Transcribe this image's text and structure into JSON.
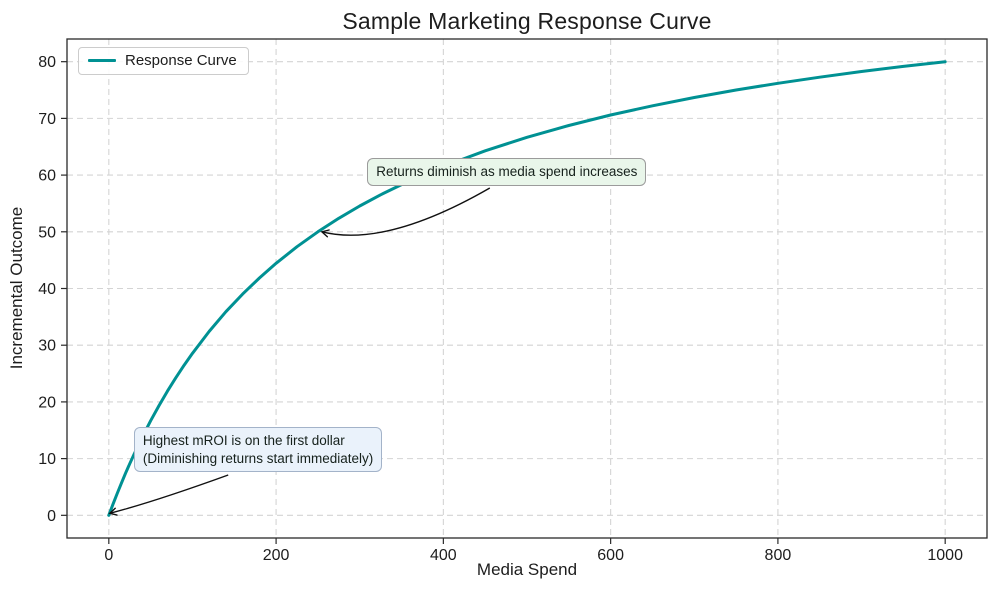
{
  "chart_data": {
    "type": "line",
    "title": "Sample Marketing Response Curve",
    "xlabel": "Media Spend",
    "ylabel": "Incremental Outcome",
    "xlim": [
      -50,
      1050
    ],
    "ylim": [
      -4,
      84
    ],
    "xticks": [
      0,
      200,
      400,
      600,
      800,
      1000
    ],
    "yticks": [
      0,
      10,
      20,
      30,
      40,
      50,
      60,
      70,
      80
    ],
    "grid": true,
    "legend": {
      "position": "upper left",
      "entries": [
        "Response Curve"
      ]
    },
    "series": [
      {
        "name": "Response Curve",
        "color": "#009193",
        "x": [
          0,
          5,
          10,
          15,
          20,
          25,
          30,
          40,
          50,
          60,
          70,
          80,
          90,
          100,
          120,
          140,
          160,
          180,
          200,
          225,
          250,
          275,
          300,
          325,
          350,
          375,
          400,
          450,
          500,
          550,
          600,
          650,
          700,
          750,
          800,
          850,
          900,
          950,
          1000
        ],
        "y": [
          0,
          1.96,
          3.85,
          5.66,
          7.41,
          9.09,
          10.71,
          13.79,
          16.67,
          19.35,
          21.88,
          24.24,
          26.47,
          28.57,
          32.43,
          35.9,
          39.02,
          41.86,
          44.44,
          47.37,
          50,
          52.38,
          54.55,
          56.52,
          58.33,
          60,
          61.54,
          64.29,
          66.67,
          68.75,
          70.59,
          72.22,
          73.68,
          75,
          76.19,
          77.27,
          78.26,
          79.17,
          80
        ]
      }
    ],
    "annotations": [
      {
        "text": "Returns diminish as media spend increases",
        "arrow_target_xy": [
          250,
          50
        ],
        "box_topleft_xy": [
          309,
          63
        ],
        "facecolor": "#e9f6ea",
        "edgecolor": "#9b9b9b"
      },
      {
        "text": "Highest mROI is on the first dollar\n(Diminishing returns start immediately)",
        "arrow_target_xy": [
          0,
          0
        ],
        "box_topleft_xy": [
          30,
          15.6
        ],
        "facecolor": "#eaf2fb",
        "edgecolor": "#a3b3c9"
      }
    ],
    "styles": {
      "grid_color": "#d4d4d4",
      "spine_color": "#2a2a2a",
      "text_color": "#1d1d1d",
      "arrow_color": "#111111",
      "legend_border": "#cccccc",
      "background": "#ffffff"
    }
  }
}
